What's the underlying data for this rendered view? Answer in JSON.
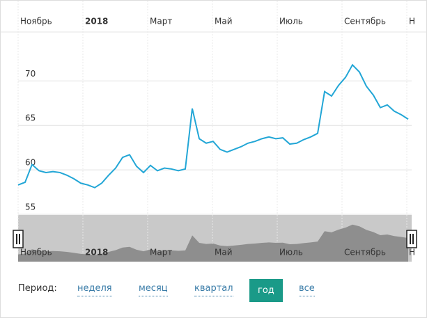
{
  "chart_data": {
    "type": "line",
    "color": "#22a6d6",
    "x": [
      0,
      1,
      2,
      3,
      4,
      5,
      6,
      7,
      8,
      9,
      10,
      11,
      12,
      13,
      14,
      15,
      16,
      17,
      18,
      19,
      20,
      21,
      22,
      23,
      24,
      25,
      26,
      27,
      28,
      29,
      30,
      31,
      32,
      33,
      34,
      35,
      36,
      37,
      38,
      39,
      40,
      41,
      42,
      43,
      44,
      45,
      46,
      47,
      48,
      49,
      50,
      51,
      52,
      53,
      54,
      55,
      56
    ],
    "values": [
      58.3,
      58.6,
      60.6,
      59.9,
      59.7,
      59.8,
      59.7,
      59.4,
      59.0,
      58.5,
      58.3,
      58.0,
      58.5,
      59.4,
      60.2,
      61.4,
      61.7,
      60.4,
      59.7,
      60.5,
      59.9,
      60.2,
      60.1,
      59.9,
      60.1,
      66.9,
      63.5,
      63.0,
      63.2,
      62.3,
      62.0,
      62.3,
      62.6,
      63.0,
      63.2,
      63.5,
      63.7,
      63.5,
      63.6,
      62.9,
      63.0,
      63.4,
      63.7,
      64.1,
      68.8,
      68.3,
      69.5,
      70.4,
      71.8,
      71.0,
      69.4,
      68.4,
      67.0,
      67.3,
      66.6,
      66.2,
      65.7
    ],
    "xlim": [
      0,
      56.5
    ],
    "xticks": [
      {
        "value": 0,
        "label": "Ноябрь"
      },
      {
        "value": 9.3,
        "label": "2018"
      },
      {
        "value": 18.6,
        "label": "Март"
      },
      {
        "value": 27.9,
        "label": "Май"
      },
      {
        "value": 37.2,
        "label": "Июль"
      },
      {
        "value": 46.5,
        "label": "Сентябрь"
      },
      {
        "value": 55.8,
        "label": "Н"
      }
    ],
    "ylim": [
      55,
      75.5
    ],
    "yticks": [
      55,
      60,
      65,
      70
    ],
    "grid": true
  },
  "period_selector": {
    "label": "Период:",
    "options": [
      "неделя",
      "месяц",
      "квартал",
      "год",
      "все"
    ],
    "active_index": 3
  }
}
